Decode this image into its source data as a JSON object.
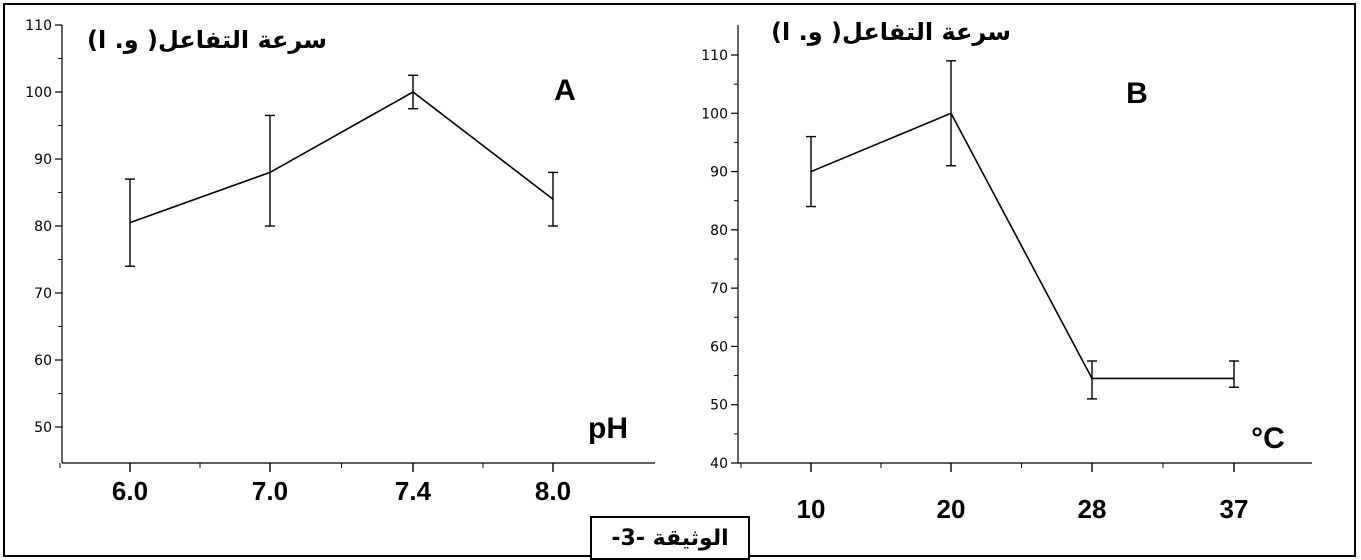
{
  "document_label": "الوثيقة -3-",
  "chart_data": [
    {
      "type": "line",
      "panel_label": "A",
      "ylabel": "سرعة التفاعل( و. ا)",
      "xlabel": "pH",
      "categories": [
        "6.0",
        "7.0",
        "7.4",
        "8.0"
      ],
      "series": [
        {
          "values": [
            80.5,
            88,
            100,
            84
          ],
          "error_low": [
            74,
            80,
            97.5,
            80
          ],
          "error_high": [
            87,
            96.5,
            102.5,
            88
          ]
        }
      ],
      "ylim": [
        45,
        110
      ],
      "yticks": [
        50,
        60,
        70,
        80,
        90,
        100,
        110
      ],
      "grid": false
    },
    {
      "type": "line",
      "panel_label": "B",
      "ylabel": "سرعة التفاعل( و. ا)",
      "xlabel": "°C",
      "categories": [
        "10",
        "20",
        "28",
        "37"
      ],
      "series": [
        {
          "values": [
            90,
            100,
            54.5,
            54.5
          ],
          "error_low": [
            84,
            91,
            51,
            53
          ],
          "error_high": [
            96,
            109,
            57.5,
            57.5
          ]
        }
      ],
      "ylim": [
        40,
        110
      ],
      "yticks": [
        40,
        50,
        60,
        70,
        80,
        90,
        100,
        110
      ],
      "grid": false
    }
  ]
}
